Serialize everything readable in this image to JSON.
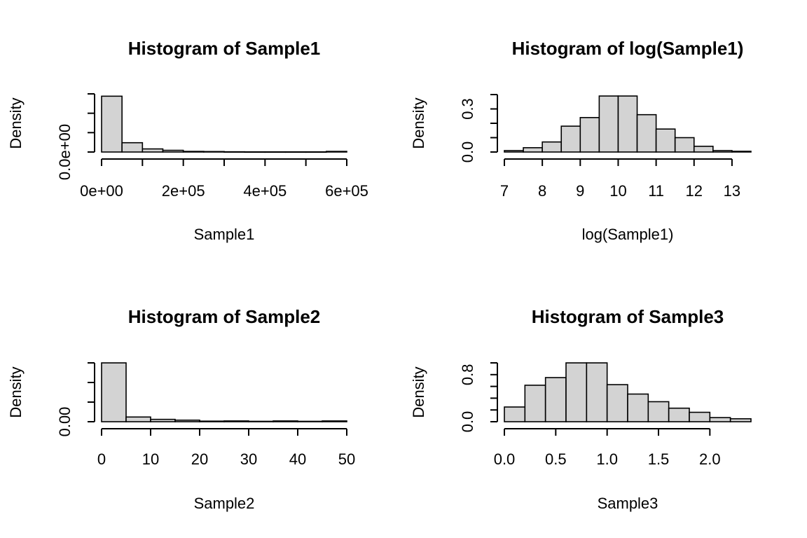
{
  "chart_data": [
    {
      "type": "bar",
      "title": "Histogram of Sample1",
      "xlabel": "Sample1",
      "ylabel": "Density",
      "xlim": [
        0,
        600000
      ],
      "ylim": [
        0,
        7.5e-06
      ],
      "breaks": [
        0,
        50000,
        100000,
        150000,
        200000,
        250000,
        300000,
        350000,
        400000,
        450000,
        500000,
        550000,
        600000
      ],
      "values": [
        7.2e-06,
        1.2e-06,
        4e-07,
        2.2e-07,
        8e-08,
        6e-08,
        3e-08,
        2e-08,
        2e-08,
        2e-08,
        2e-08,
        8e-08
      ],
      "xticks": [
        0,
        100000,
        200000,
        300000,
        400000,
        500000,
        600000
      ],
      "xtick_labels": [
        "0e+00",
        "",
        "2e+05",
        "",
        "4e+05",
        "",
        "6e+05"
      ],
      "yticks": [
        0,
        2.5e-06,
        5e-06,
        7.5e-06
      ],
      "ytick_labels": [
        "0.0e+00",
        "",
        "",
        ""
      ]
    },
    {
      "type": "bar",
      "title": "Histogram of log(Sample1)",
      "xlabel": "log(Sample1)",
      "ylabel": "Density",
      "xlim": [
        7,
        13.5
      ],
      "ylim": [
        0,
        0.4
      ],
      "breaks": [
        7,
        7.5,
        8,
        8.5,
        9,
        9.5,
        10,
        10.5,
        11,
        11.5,
        12,
        12.5,
        13,
        13.5
      ],
      "values": [
        0.01,
        0.03,
        0.07,
        0.18,
        0.24,
        0.39,
        0.39,
        0.26,
        0.16,
        0.1,
        0.04,
        0.01,
        0.005
      ],
      "xticks": [
        7,
        8,
        9,
        10,
        11,
        12,
        13
      ],
      "xtick_labels": [
        "7",
        "8",
        "9",
        "10",
        "11",
        "12",
        "13"
      ],
      "yticks": [
        0,
        0.1,
        0.2,
        0.3,
        0.4
      ],
      "ytick_labels": [
        "0.0",
        "",
        "",
        "0.3",
        ""
      ]
    },
    {
      "type": "bar",
      "title": "Histogram of Sample2",
      "xlabel": "Sample2",
      "ylabel": "Density",
      "xlim": [
        0,
        50
      ],
      "ylim": [
        0,
        0.15
      ],
      "breaks": [
        0,
        5,
        10,
        15,
        20,
        25,
        30,
        35,
        40,
        45,
        50
      ],
      "values": [
        0.15,
        0.012,
        0.006,
        0.004,
        0.0015,
        0.002,
        0.001,
        0.002,
        0.001,
        0.002
      ],
      "xticks": [
        0,
        10,
        20,
        30,
        40,
        50
      ],
      "xtick_labels": [
        "0",
        "10",
        "20",
        "30",
        "40",
        "50"
      ],
      "yticks": [
        0,
        0.05,
        0.1,
        0.15
      ],
      "ytick_labels": [
        "0.00",
        "",
        "",
        ""
      ]
    },
    {
      "type": "bar",
      "title": "Histogram of Sample3",
      "xlabel": "Sample3",
      "ylabel": "Density",
      "xlim": [
        0,
        2.4
      ],
      "ylim": [
        0,
        1.0
      ],
      "breaks": [
        0,
        0.2,
        0.4,
        0.6,
        0.8,
        1.0,
        1.2,
        1.4,
        1.6,
        1.8,
        2.0,
        2.2,
        2.4
      ],
      "values": [
        0.25,
        0.62,
        0.75,
        1.0,
        1.0,
        0.63,
        0.47,
        0.34,
        0.23,
        0.16,
        0.07,
        0.05
      ],
      "xticks": [
        0,
        0.5,
        1.0,
        1.5,
        2.0
      ],
      "xtick_labels": [
        "0.0",
        "0.5",
        "1.0",
        "1.5",
        "2.0"
      ],
      "yticks": [
        0,
        0.2,
        0.4,
        0.6,
        0.8,
        1.0
      ],
      "ytick_labels": [
        "0.0",
        "",
        "",
        "",
        "0.8",
        ""
      ]
    }
  ]
}
